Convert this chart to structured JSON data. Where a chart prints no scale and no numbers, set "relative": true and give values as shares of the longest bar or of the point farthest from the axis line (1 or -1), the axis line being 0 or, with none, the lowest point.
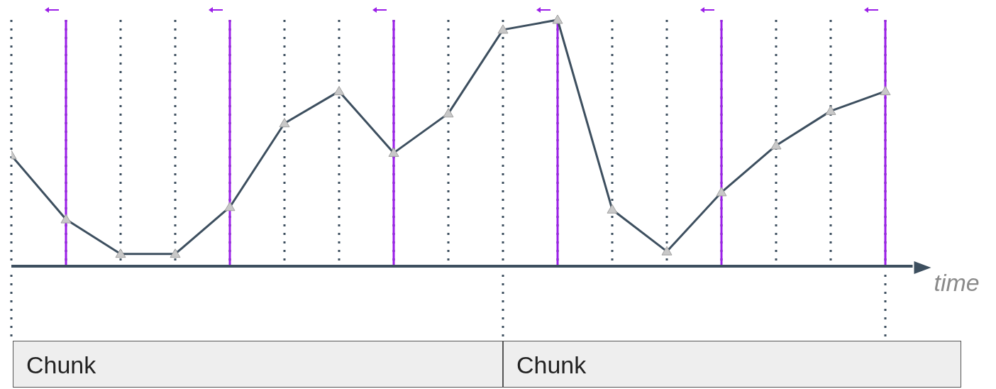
{
  "chart_data": {
    "type": "line",
    "relative": true,
    "xlabel": "time",
    "grid": "x",
    "line_style": "solid",
    "marker": "triangle",
    "categories": [
      null,
      null,
      null,
      null,
      null,
      null,
      null,
      null,
      null,
      null,
      null,
      null,
      null,
      null,
      null,
      null,
      null
    ],
    "series": [
      {
        "color": "#3d4f5f",
        "values": [
          0.45,
          0.19,
          0.05,
          0.05,
          0.24,
          0.58,
          0.71,
          0.46,
          0.62,
          0.96,
          1.0,
          0.23,
          0.06,
          0.3,
          0.49,
          0.63,
          0.71
        ]
      }
    ],
    "annotations": [
      "Chunk",
      "Chunk"
    ]
  }
}
